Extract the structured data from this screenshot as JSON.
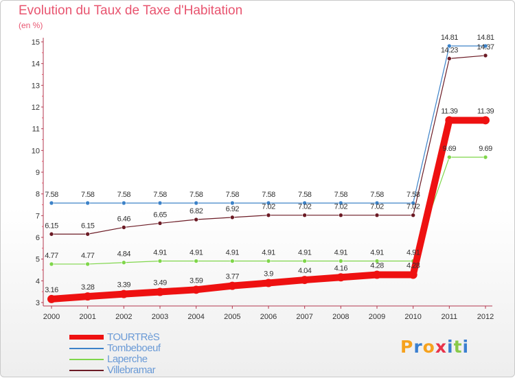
{
  "title": "Evolution du Taux de Taxe d'Habitation",
  "subtitle": "(en %)",
  "colors": {
    "title": "#e8546f",
    "axis": "#b3364d",
    "grid_dot": "#e2566b",
    "legend_text": "#6a9ad6"
  },
  "logo": {
    "letters": [
      "P",
      "r",
      "o",
      "x",
      "i",
      "t",
      "i"
    ],
    "colors": [
      "#f6a21e",
      "#3a7fd0",
      "#f6a21e",
      "#e8334a",
      "#3a7fd0",
      "#88c94a",
      "#3a7fd0"
    ]
  },
  "chart_data": {
    "type": "line",
    "title": "Evolution du Taux de Taxe d'Habitation",
    "ylabel": "(en %)",
    "xlabel": "",
    "x": [
      "2000",
      "2001",
      "2002",
      "2003",
      "2004",
      "2005",
      "2006",
      "2007",
      "2008",
      "2009",
      "2010",
      "2011",
      "2012"
    ],
    "ylim": [
      3,
      15
    ],
    "yticks": [
      3,
      4,
      5,
      6,
      7,
      8,
      9,
      10,
      11,
      12,
      13,
      14,
      15
    ],
    "grid": false,
    "legend_position": "bottom-left",
    "series": [
      {
        "name": "TOURTRèS",
        "color": "#ee1111",
        "values": [
          3.16,
          3.28,
          3.39,
          3.49,
          3.59,
          3.77,
          3.9,
          4.04,
          4.16,
          4.28,
          4.28,
          11.39,
          11.39
        ],
        "labels": [
          "3.16",
          "3.28",
          "3.39",
          "3.49",
          "3.59",
          "3.77",
          "3.9",
          "4.04",
          "4.16",
          "4.28",
          "4.28",
          "11.39",
          "11.39"
        ]
      },
      {
        "name": "Tombeboeuf",
        "color": "#3c82c8",
        "values": [
          7.58,
          7.58,
          7.58,
          7.58,
          7.58,
          7.58,
          7.58,
          7.58,
          7.58,
          7.58,
          7.58,
          14.81,
          14.81
        ],
        "labels": [
          "7.58",
          "7.58",
          "7.58",
          "7.58",
          "7.58",
          "7.58",
          "7.58",
          "7.58",
          "7.58",
          "7.58",
          "7.58",
          "14.81",
          "14.81"
        ]
      },
      {
        "name": "Laperche",
        "color": "#7fd64a",
        "values": [
          4.77,
          4.77,
          4.84,
          4.91,
          4.91,
          4.91,
          4.91,
          4.91,
          4.91,
          4.91,
          4.91,
          9.69,
          9.69
        ],
        "labels": [
          "4.77",
          "4.77",
          "4.84",
          "4.91",
          "4.91",
          "4.91",
          "4.91",
          "4.91",
          "4.91",
          "4.91",
          "4.91",
          "9.69",
          "9.69"
        ]
      },
      {
        "name": "Villebramar",
        "color": "#6b1a24",
        "values": [
          6.15,
          6.15,
          6.46,
          6.65,
          6.82,
          6.92,
          7.02,
          7.02,
          7.02,
          7.02,
          7.02,
          14.23,
          14.37
        ],
        "labels": [
          "6.15",
          "6.15",
          "6.46",
          "6.65",
          "6.82",
          "6.92",
          "7.02",
          "7.02",
          "7.02",
          "7.02",
          "7.02",
          "14.23",
          "14.37"
        ]
      }
    ]
  }
}
